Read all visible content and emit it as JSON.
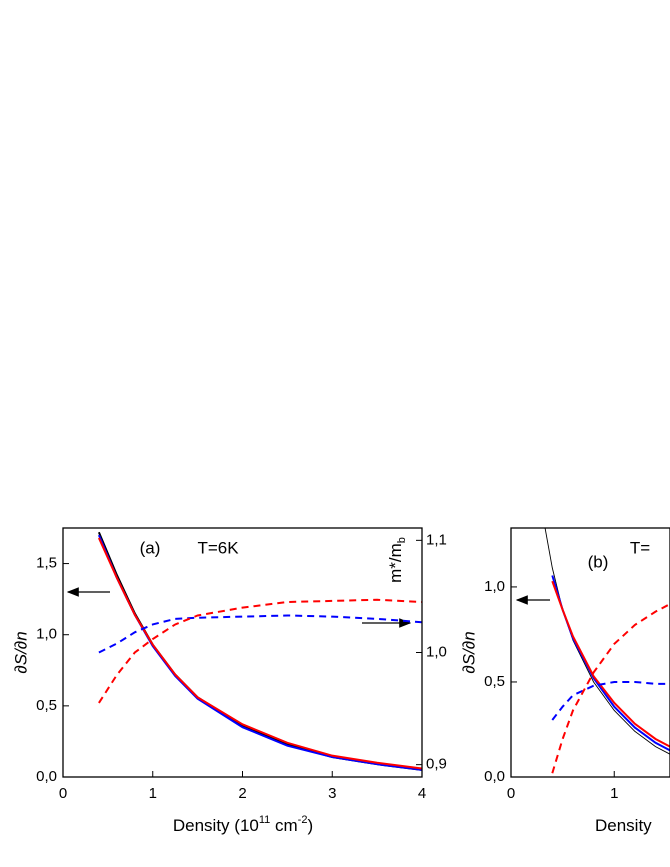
{
  "chart_data": [
    {
      "type": "line",
      "annotations": [
        "(a)",
        "T=6K"
      ],
      "y_label": "∂S/∂n",
      "y2_label": [
        "m*/m",
        "b"
      ],
      "x_label": [
        "Density (10",
        "11",
        " cm",
        "-2",
        ")"
      ],
      "x": [
        0.4,
        0.6,
        0.8,
        1,
        1.25,
        1.5,
        2,
        2.5,
        3,
        3.5,
        4
      ],
      "series": [
        {
          "color": "#000000",
          "style": "solid",
          "values": [
            1.72,
            1.42,
            1.15,
            0.93,
            0.72,
            0.56,
            0.36,
            0.23,
            0.14,
            0.09,
            0.05
          ]
        },
        {
          "color": "#0000ff",
          "style": "solid",
          "values": [
            1.7,
            1.4,
            1.14,
            0.92,
            0.71,
            0.55,
            0.35,
            0.22,
            0.14,
            0.09,
            0.05
          ]
        },
        {
          "color": "#ff0000",
          "style": "solid",
          "values": [
            1.68,
            1.4,
            1.14,
            0.93,
            0.72,
            0.56,
            0.37,
            0.24,
            0.15,
            0.1,
            0.06
          ]
        },
        {
          "color": "#0000ff",
          "style": "dashed",
          "axis": "y2",
          "values": [
            1.0,
            1.008,
            1.018,
            1.025,
            1.03,
            1.031,
            1.032,
            1.033,
            1.032,
            1.03,
            1.027
          ]
        },
        {
          "color": "#ff0000",
          "style": "dashed",
          "axis": "y2",
          "values": [
            0.955,
            0.98,
            1.0,
            1.012,
            1.025,
            1.033,
            1.04,
            1.045,
            1.046,
            1.047,
            1.045
          ]
        }
      ],
      "xlim": [
        0,
        4
      ],
      "xticks": [
        0,
        1,
        2,
        3,
        4
      ],
      "ylim": [
        0,
        1.75
      ],
      "yticks": [
        {
          "value": 0,
          "label": "0,0"
        },
        {
          "value": 0.5,
          "label": "0,5"
        },
        {
          "value": 1,
          "label": "1,0"
        },
        {
          "value": 1.5,
          "label": "1,5"
        }
      ],
      "y2lim": [
        0.889,
        1.111
      ],
      "y2ticks": [
        {
          "value": 0.9,
          "label": "0,9"
        },
        {
          "value": 1,
          "label": "1,0"
        },
        {
          "value": 1.1,
          "label": "1,1"
        }
      ]
    },
    {
      "type": "line",
      "annotations": [
        "(b)",
        "T="
      ],
      "y_label": "∂S/∂n",
      "x_label": [
        "Density"
      ],
      "x": [
        0.33,
        0.4,
        0.5,
        0.6,
        0.8,
        1,
        1.2,
        1.4,
        1.54
      ],
      "series": [
        {
          "color": "#000000",
          "style": "thin",
          "values": [
            1.31,
            1.1,
            0.88,
            0.72,
            0.5,
            0.35,
            0.24,
            0.16,
            0.12
          ]
        },
        {
          "color": "#0000ff",
          "style": "solid",
          "values": [
            null,
            1.06,
            0.88,
            0.73,
            0.52,
            0.37,
            0.26,
            0.18,
            0.14
          ]
        },
        {
          "color": "#ff0000",
          "style": "solid",
          "values": [
            null,
            1.03,
            0.88,
            0.74,
            0.53,
            0.39,
            0.28,
            0.2,
            0.16
          ]
        },
        {
          "color": "#0000ff",
          "style": "dashed",
          "values": [
            null,
            0.3,
            0.37,
            0.43,
            0.48,
            0.5,
            0.5,
            0.49,
            0.49
          ]
        },
        {
          "color": "#ff0000",
          "style": "dashed",
          "values": [
            null,
            0.02,
            0.2,
            0.35,
            0.55,
            0.7,
            0.8,
            0.87,
            0.91
          ]
        }
      ],
      "xlim": [
        0,
        1.54
      ],
      "xticks": [
        0,
        1
      ],
      "ylim": [
        0,
        1.31
      ],
      "yticks": [
        {
          "value": 0,
          "label": "0,0"
        },
        {
          "value": 0.5,
          "label": "0,5"
        },
        {
          "value": 1,
          "label": "1,0"
        }
      ]
    }
  ]
}
